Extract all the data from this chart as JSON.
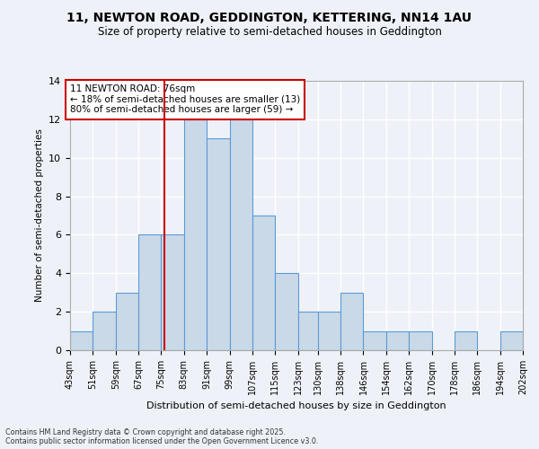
{
  "title1": "11, NEWTON ROAD, GEDDINGTON, KETTERING, NN14 1AU",
  "title2": "Size of property relative to semi-detached houses in Geddington",
  "xlabel": "Distribution of semi-detached houses by size in Geddington",
  "ylabel": "Number of semi-detached properties",
  "footnote1": "Contains HM Land Registry data © Crown copyright and database right 2025.",
  "footnote2": "Contains public sector information licensed under the Open Government Licence v3.0.",
  "bin_labels": [
    "43sqm",
    "51sqm",
    "59sqm",
    "67sqm",
    "75sqm",
    "83sqm",
    "91sqm",
    "99sqm",
    "107sqm",
    "115sqm",
    "123sqm",
    "130sqm",
    "138sqm",
    "146sqm",
    "154sqm",
    "162sqm",
    "170sqm",
    "178sqm",
    "186sqm",
    "194sqm",
    "202sqm"
  ],
  "bin_edges": [
    43,
    51,
    59,
    67,
    75,
    83,
    91,
    99,
    107,
    115,
    123,
    130,
    138,
    146,
    154,
    162,
    170,
    178,
    186,
    194,
    202
  ],
  "counts": [
    1,
    2,
    3,
    6,
    6,
    12,
    11,
    12,
    7,
    4,
    2,
    2,
    3,
    1,
    1,
    1,
    0,
    1,
    0,
    1
  ],
  "property_value": 76,
  "bar_color": "#c9d9e8",
  "bar_edge_color": "#5b9bd5",
  "vline_color": "#cc0000",
  "annotation_text": "11 NEWTON ROAD: 76sqm\n← 18% of semi-detached houses are smaller (13)\n80% of semi-detached houses are larger (59) →",
  "annotation_box_edge": "#cc0000",
  "bg_color": "#eef2f8",
  "grid_color": "#ffffff",
  "ylim": [
    0,
    14
  ],
  "yticks": [
    0,
    2,
    4,
    6,
    8,
    10,
    12,
    14
  ]
}
